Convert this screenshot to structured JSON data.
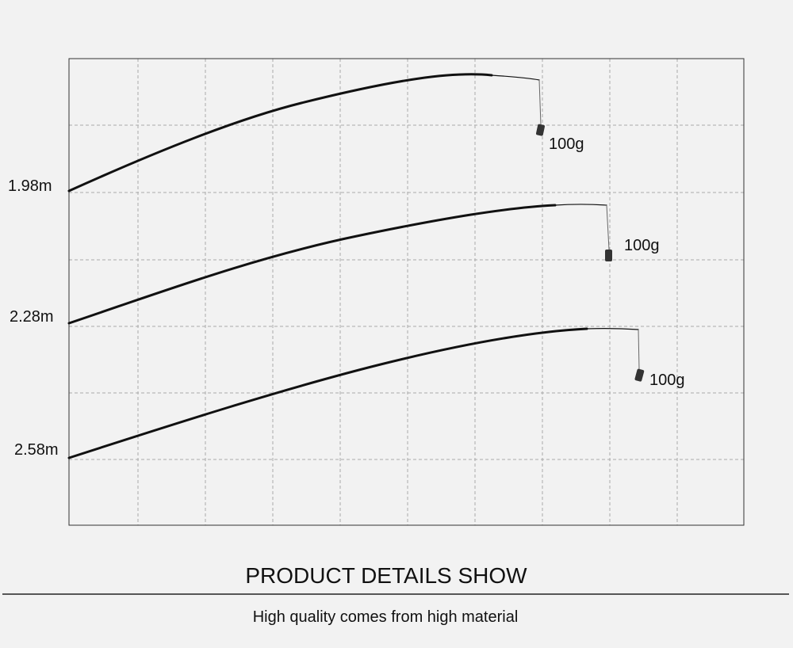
{
  "rods": [
    {
      "length": "1.98m",
      "weight": "100g"
    },
    {
      "length": "2.28m",
      "weight": "100g"
    },
    {
      "length": "2.58m",
      "weight": "100g"
    }
  ],
  "title": "PRODUCT DETAILS SHOW",
  "subtitle": "High quality comes from high material"
}
